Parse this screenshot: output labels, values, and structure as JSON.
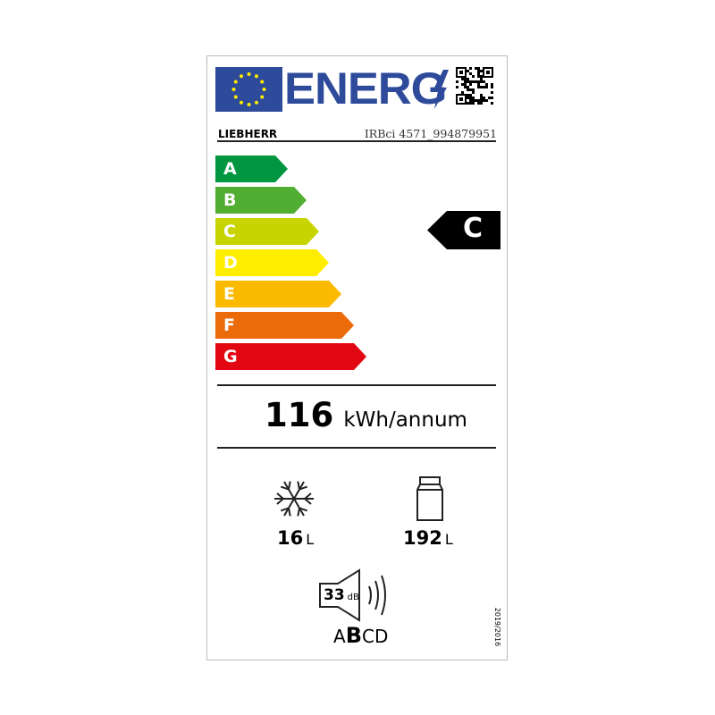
{
  "header": {
    "energy_word": "ENERG",
    "brand": "LIEBHERR",
    "model": "IRBci 4571_994879951",
    "eu_blue": "#2e4a9a"
  },
  "scale": [
    {
      "label": "A",
      "color": "#00963f"
    },
    {
      "label": "B",
      "color": "#52ae32"
    },
    {
      "label": "C",
      "color": "#c8d400"
    },
    {
      "label": "D",
      "color": "#ffed00"
    },
    {
      "label": "E",
      "color": "#fbba00"
    },
    {
      "label": "F",
      "color": "#eb6a0a"
    },
    {
      "label": "G",
      "color": "#e30613"
    }
  ],
  "rating": {
    "class": "C"
  },
  "consumption": {
    "value": "116",
    "unit": "kWh/annum"
  },
  "freezer": {
    "icon": "snowflake-icon",
    "value": "16",
    "unit": "L"
  },
  "fridge": {
    "icon": "fridge-icon",
    "value": "192",
    "unit": "L"
  },
  "noise": {
    "value": "33",
    "unit": "dB",
    "classes": {
      "before": "A",
      "current": "B",
      "after": "CD"
    }
  },
  "regulation": "2019/2016"
}
